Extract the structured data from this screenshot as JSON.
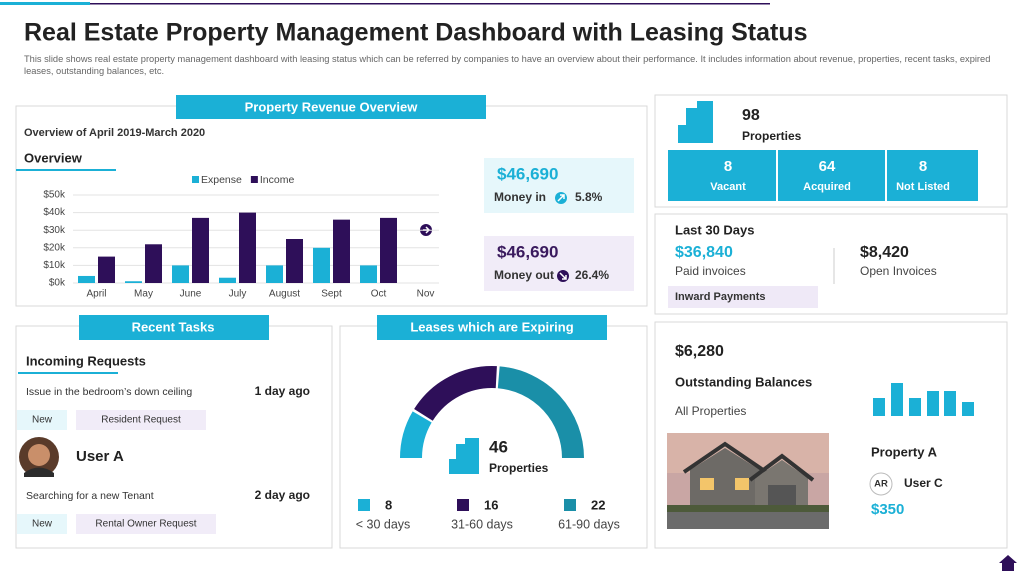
{
  "header": {
    "title": "Real Estate Property Management Dashboard with Leasing Status",
    "description": "This slide shows real estate property management dashboard with leasing status which can be referred by companies to have an overview about their performance. It includes information about revenue, properties, recent tasks, expired leases, outstanding balances, etc."
  },
  "revenue": {
    "title": "Property Revenue Overview",
    "period": "Overview of April 2019-March 2020",
    "overview_heading": "Overview",
    "chart": {
      "type": "bar",
      "categories": [
        "April",
        "May",
        "June",
        "July",
        "August",
        "Sept",
        "Oct",
        "Nov"
      ],
      "series": [
        {
          "name": "Expense",
          "color": "#1bb0d6",
          "values": [
            4000,
            1000,
            10000,
            3000,
            10000,
            20000,
            10000,
            null
          ]
        },
        {
          "name": "Income",
          "color": "#2e0f59",
          "values": [
            15000,
            22000,
            37000,
            40000,
            25000,
            36000,
            37000,
            null
          ]
        }
      ],
      "ylim": [
        0,
        50000
      ],
      "yticks": [
        {
          "value": 0,
          "label": "$0k"
        },
        {
          "value": 10000,
          "label": "$10k"
        },
        {
          "value": 20000,
          "label": "$20k"
        },
        {
          "value": 30000,
          "label": "$30k"
        },
        {
          "value": 40000,
          "label": "$40k"
        },
        {
          "value": 50000,
          "label": "$50k"
        }
      ],
      "grid": true
    },
    "money_in": {
      "amount": "$46,690",
      "label": "Money in",
      "change": "5.8%"
    },
    "money_out": {
      "amount": "$46,690",
      "label": "Money out",
      "change": "26.4%"
    }
  },
  "properties": {
    "count": 98,
    "label": "Properties",
    "stats": [
      {
        "value": 8,
        "label": "Vacant"
      },
      {
        "value": 64,
        "label": "Acquired"
      },
      {
        "value": 8,
        "label": "Not Listed"
      }
    ]
  },
  "last30": {
    "title": "Last 30 Days",
    "paid": {
      "amount": "$36,840",
      "label": "Paid invoices"
    },
    "open": {
      "amount": "$8,420",
      "label": "Open Invoices"
    },
    "button": "Inward Payments"
  },
  "tasks": {
    "title": "Recent Tasks",
    "heading": "Incoming Requests",
    "user": "User A",
    "items": [
      {
        "text": "Issue in the bedroom’s  down ceiling",
        "time": "1 day ago",
        "tags": [
          "New",
          "Resident Request"
        ]
      },
      {
        "text": "Searching for a new Tenant",
        "time": "2 day ago",
        "tags": [
          "New",
          "Rental Owner Request"
        ]
      }
    ]
  },
  "leases": {
    "title": "Leases which are Expiring",
    "total": 46,
    "total_label": "Properties",
    "segments": [
      {
        "value": 8,
        "label": "< 30 days",
        "color": "#1bb0d6"
      },
      {
        "value": 16,
        "label": "31-60 days",
        "color": "#2e0f59"
      },
      {
        "value": 22,
        "label": "61-90 days",
        "color": "#1a8fa8"
      }
    ]
  },
  "balances": {
    "amount": "$6,280",
    "title": "Outstanding Balances",
    "subtitle": "All Properties",
    "property": "Property A",
    "initials": "AR",
    "user": "User C",
    "price": "$350"
  }
}
